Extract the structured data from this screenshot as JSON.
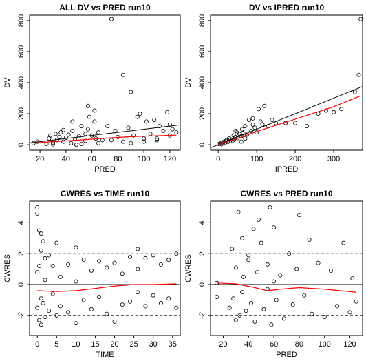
{
  "chart_data": [
    {
      "type": "scatter",
      "title": "ALL DV vs PRED run10",
      "x_label": "PRED",
      "y_label": "DV",
      "xlim": [
        12,
        128
      ],
      "ylim": [
        -35,
        835
      ],
      "xticks": [
        20,
        40,
        60,
        80,
        100,
        120
      ],
      "yticks": [
        0,
        200,
        400,
        600,
        800
      ],
      "point_color": "#000000",
      "identity_line": true,
      "identity_color": "#000000",
      "x": [
        15,
        18,
        25,
        27,
        28,
        30,
        32,
        33,
        35,
        36,
        38,
        40,
        42,
        44,
        45,
        47,
        50,
        52,
        55,
        57,
        58,
        60,
        62,
        63,
        65,
        68,
        72,
        75,
        78,
        80,
        84,
        88,
        90,
        92,
        95,
        97,
        100,
        102,
        105,
        108,
        110,
        112,
        115,
        118,
        120,
        122,
        125,
        57,
        62,
        45,
        38,
        55,
        75,
        84,
        90,
        120,
        100,
        65,
        48,
        30,
        52,
        110
      ],
      "y": [
        10,
        20,
        5,
        40,
        60,
        15,
        70,
        30,
        50,
        80,
        20,
        45,
        65,
        10,
        90,
        35,
        55,
        120,
        25,
        100,
        180,
        60,
        150,
        40,
        80,
        30,
        120,
        810,
        90,
        50,
        450,
        110,
        340,
        60,
        180,
        200,
        40,
        150,
        70,
        160,
        30,
        120,
        90,
        210,
        60,
        100,
        80,
        250,
        220,
        150,
        95,
        70,
        30,
        20,
        10,
        130,
        20,
        10,
        0,
        2,
        5,
        40
      ],
      "smooth": {
        "color": "#ff0000",
        "x": [
          15,
          30,
          50,
          70,
          90,
          110,
          125
        ],
        "y": [
          12,
          20,
          30,
          42,
          52,
          58,
          62
        ]
      }
    },
    {
      "type": "scatter",
      "title": "DV vs IPRED run10",
      "x_label": "IPRED",
      "y_label": "DV",
      "xlim": [
        -20,
        375
      ],
      "ylim": [
        -35,
        835
      ],
      "xticks": [
        0,
        100,
        200,
        300
      ],
      "yticks": [
        0,
        200,
        400,
        600,
        800
      ],
      "point_color": "#000000",
      "identity_line": true,
      "identity_color": "#000000",
      "x": [
        2,
        5,
        8,
        10,
        12,
        15,
        18,
        20,
        22,
        25,
        28,
        30,
        32,
        35,
        38,
        40,
        42,
        45,
        48,
        50,
        55,
        60,
        62,
        65,
        70,
        75,
        80,
        85,
        90,
        95,
        100,
        105,
        110,
        115,
        120,
        130,
        140,
        150,
        175,
        200,
        230,
        260,
        280,
        300,
        320,
        355,
        365,
        370,
        60,
        45,
        70,
        90
      ],
      "y": [
        5,
        8,
        3,
        15,
        10,
        20,
        12,
        25,
        30,
        18,
        40,
        22,
        35,
        45,
        28,
        60,
        38,
        50,
        80,
        42,
        70,
        55,
        100,
        75,
        120,
        65,
        160,
        90,
        130,
        110,
        80,
        230,
        150,
        130,
        250,
        120,
        160,
        140,
        140,
        140,
        120,
        200,
        220,
        210,
        230,
        340,
        450,
        810,
        20,
        90,
        40,
        170
      ],
      "smooth": {
        "color": "#ff0000",
        "x": [
          0,
          50,
          100,
          150,
          200,
          300,
          370
        ],
        "y": [
          0,
          40,
          85,
          125,
          165,
          245,
          315
        ]
      }
    },
    {
      "type": "scatter",
      "title": "CWRES vs TIME run10",
      "x_label": "TIME",
      "y_label": "CWRES",
      "xlim": [
        -2,
        37
      ],
      "ylim": [
        -3.3,
        5.4
      ],
      "xticks": [
        0,
        5,
        10,
        15,
        20,
        25,
        30,
        35
      ],
      "yticks": [
        -2,
        0,
        2,
        4
      ],
      "point_color": "#000000",
      "hlines": [
        {
          "y": 0,
          "dashed": false
        },
        {
          "y": 2,
          "dashed": true
        },
        {
          "y": -2,
          "dashed": true
        }
      ],
      "x": [
        0,
        0,
        0,
        0,
        0.5,
        0.5,
        0.5,
        1,
        1,
        1,
        1,
        1.5,
        1.5,
        2,
        2,
        2,
        3,
        3,
        4,
        4,
        5,
        5,
        6,
        6,
        8,
        8,
        10,
        10,
        10,
        12,
        12,
        14,
        14,
        16,
        16,
        18,
        18,
        20,
        20,
        22,
        22,
        24,
        24,
        26,
        26,
        26,
        28,
        28,
        30,
        30,
        32,
        32,
        34,
        34,
        36,
        36
      ],
      "y": [
        5,
        4.6,
        -1.5,
        0.8,
        3.5,
        -2.3,
        1.2,
        3.3,
        -0.9,
        2.2,
        -2.6,
        2.8,
        -1.2,
        1.7,
        -2.1,
        0.3,
        1.9,
        -1.7,
        1.2,
        -0.6,
        2.7,
        -2.0,
        0.5,
        -1.4,
        1.3,
        -1.8,
        2.4,
        -2.5,
        0.2,
        1.6,
        -1.0,
        0.9,
        -1.6,
        1.5,
        -0.8,
        1.1,
        -1.9,
        1.4,
        -2.4,
        0.7,
        -1.3,
        1.8,
        -1.1,
        2.3,
        -0.5,
        1.0,
        1.7,
        -1.4,
        1.9,
        -0.7,
        1.3,
        -1.2,
        1.6,
        -0.9,
        2.0,
        -1.5
      ],
      "smooth": {
        "color": "#ff0000",
        "x": [
          0,
          5,
          10,
          15,
          20,
          25,
          30,
          36
        ],
        "y": [
          -0.4,
          -0.45,
          -0.4,
          -0.25,
          -0.1,
          0.0,
          0.0,
          0.05
        ]
      }
    },
    {
      "type": "scatter",
      "title": "CWRES vs PRED run10",
      "x_label": "PRED",
      "y_label": "CWRES",
      "xlim": [
        10,
        130
      ],
      "ylim": [
        -3.3,
        5.4
      ],
      "xticks": [
        20,
        40,
        60,
        80,
        100,
        120
      ],
      "yticks": [
        -2,
        0,
        2,
        4
      ],
      "point_color": "#000000",
      "hlines": [
        {
          "y": 0,
          "dashed": false
        },
        {
          "y": 2,
          "dashed": true
        },
        {
          "y": -2,
          "dashed": true
        }
      ],
      "x": [
        15,
        15,
        25,
        27,
        28,
        30,
        32,
        33,
        35,
        36,
        38,
        40,
        42,
        44,
        45,
        47,
        50,
        52,
        55,
        57,
        58,
        60,
        62,
        65,
        68,
        72,
        75,
        78,
        80,
        84,
        88,
        90,
        95,
        100,
        105,
        110,
        115,
        120,
        122,
        125,
        55,
        48,
        35,
        60,
        40,
        30
      ],
      "y": [
        0.1,
        -0.8,
        -1.5,
        2.3,
        -0.9,
        1.1,
        4.7,
        -2.0,
        3.0,
        0.5,
        -1.7,
        1.9,
        -1.2,
        3.6,
        -2.4,
        0.8,
        2.7,
        -1.6,
        1.3,
        5.0,
        -2.6,
        3.7,
        -1.0,
        0.6,
        -2.2,
        2.0,
        -1.3,
        1.0,
        4.5,
        -0.7,
        2.9,
        -1.9,
        1.4,
        -2.1,
        0.9,
        -1.4,
        2.7,
        -1.8,
        0.4,
        -1.1,
        -0.3,
        4.2,
        -0.5,
        0.2,
        1.6,
        -2.3
      ],
      "smooth": {
        "color": "#ff0000",
        "x": [
          15,
          30,
          45,
          55,
          65,
          80,
          100,
          125
        ],
        "y": [
          0.1,
          0.05,
          -0.2,
          -0.4,
          -0.3,
          -0.2,
          -0.3,
          -0.5
        ]
      }
    }
  ]
}
